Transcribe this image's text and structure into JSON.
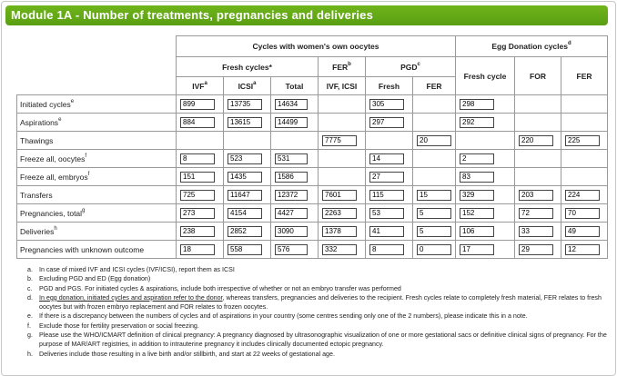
{
  "title": "Module 1A - Number of treatments, pregnancies and deliveries",
  "headers": {
    "own": "Cycles with women's own oocytes",
    "egg": "Egg Donation cycles",
    "egg_sup": "d",
    "fresh": "Fresh cycles*",
    "fer": "FER",
    "fer_sup": "b",
    "pgd": "PGD",
    "pgd_sup": "c",
    "ivf": "IVF",
    "ivf_sup": "a",
    "icsi": "ICSI",
    "icsi_sup": "a",
    "total": "Total",
    "fer_ivf_icsi": "IVF, ICSI",
    "pgd_fresh": "Fresh",
    "pgd_fer": "FER",
    "ed_fresh": "Fresh cycle",
    "ed_for": "FOR",
    "ed_fer": "FER"
  },
  "rows": [
    {
      "label": "Initiated cycles",
      "sup": "e",
      "v": [
        "899",
        "13735",
        "14634",
        "",
        "305",
        "",
        "298",
        "",
        ""
      ]
    },
    {
      "label": "Aspirations",
      "sup": "e",
      "v": [
        "884",
        "13615",
        "14499",
        "",
        "297",
        "",
        "292",
        "",
        ""
      ]
    },
    {
      "label": "Thawings",
      "sup": "",
      "v": [
        "",
        "",
        "",
        "7775",
        "",
        "20",
        "",
        "220",
        "225"
      ]
    },
    {
      "label": "Freeze all, oocytes",
      "sup": "f",
      "v": [
        "8",
        "523",
        "531",
        "",
        "14",
        "",
        "2",
        "",
        ""
      ]
    },
    {
      "label": "Freeze all, embryos",
      "sup": "f",
      "v": [
        "151",
        "1435",
        "1586",
        "",
        "27",
        "",
        "83",
        "",
        ""
      ]
    },
    {
      "label": "Transfers",
      "sup": "",
      "v": [
        "725",
        "11647",
        "12372",
        "7601",
        "115",
        "15",
        "329",
        "203",
        "224"
      ]
    },
    {
      "label": "Pregnancies, total",
      "sup": "g",
      "v": [
        "273",
        "4154",
        "4427",
        "2263",
        "53",
        "5",
        "152",
        "72",
        "70"
      ]
    },
    {
      "label": "Deliveries",
      "sup": "h",
      "v": [
        "238",
        "2852",
        "3090",
        "1378",
        "41",
        "5",
        "106",
        "33",
        "49"
      ]
    },
    {
      "label": "Pregnancies with unknown outcome",
      "sup": "",
      "v": [
        "18",
        "558",
        "576",
        "332",
        "8",
        "0",
        "17",
        "29",
        "12"
      ]
    }
  ],
  "notes": [
    {
      "letter": "a.",
      "text": "In case of mixed IVF and ICSI cycles (IVF/ICSI), report them as ICSI"
    },
    {
      "letter": "b.",
      "text": "Excluding PGD and ED (Egg donation)"
    },
    {
      "letter": "c.",
      "text": "PGD and PGS. For initiated cycles & aspirations, include both irrespective of whether or not an embryo transfer was performed"
    },
    {
      "letter": "d.",
      "text_u": "In egg donation, initiated cycles and aspiration refer to the donor",
      "text": ", whereas transfers, pregnancies and deliveries to the recipient. Fresh cycles relate to completely fresh material, FER relates to fresh oocytes but with frozen embryo replacement and FOR relates to frozen oocytes."
    },
    {
      "letter": "e.",
      "text": "If there is a discrepancy between the numbers of cycles and of aspirations in your country (some centres sending only one of the 2 numbers), please indicate this in a note."
    },
    {
      "letter": "f.",
      "text": "Exclude those for fertility preservation or social freezing."
    },
    {
      "letter": "g.",
      "text": "Please use the WHO/ICMART definition of clinical pregnancy: A pregnancy diagnosed by ultrasonographic visualization of one or more gestational sacs or definitive clinical signs of pregnancy. For the purpose of MAR/ART registries, in addition to intrauterine pregnancy it includes clinically documented ectopic pregnancy."
    },
    {
      "letter": "h.",
      "text": "Deliveries include those resulting in a live birth and/or stillbirth, and start at 22 weeks of gestational age."
    }
  ]
}
